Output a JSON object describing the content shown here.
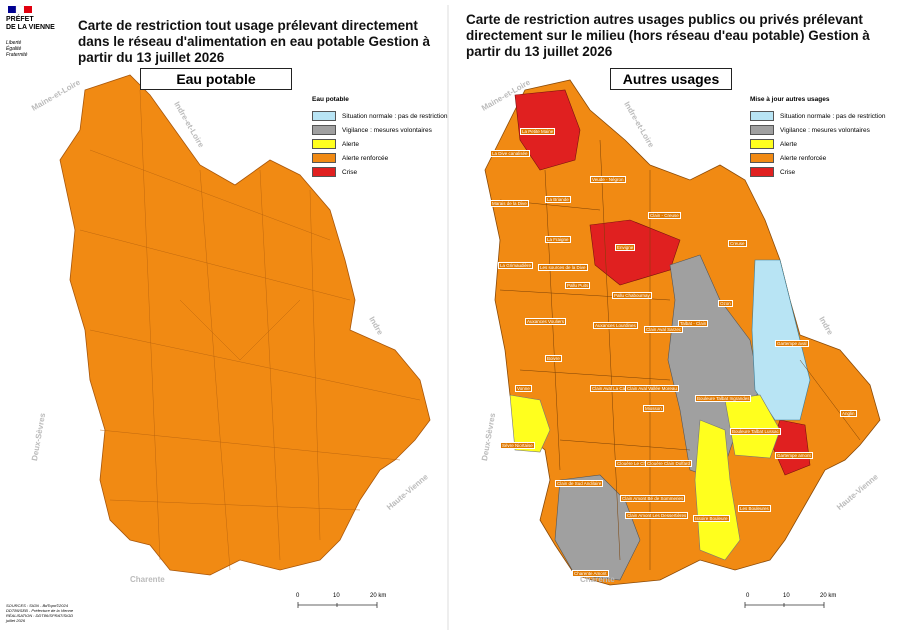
{
  "logo": {
    "name": "PRÉFET\nDE LA VIENNE",
    "motto": "Liberté\nÉgalité\nFraternité"
  },
  "left": {
    "title": "Carte de restriction tout usage prélevant directement dans le réseau d'alimentation en eau potable  Gestion à partir du 13 juillet 2026",
    "box_label": "Eau potable",
    "legend": {
      "title": "Eau potable",
      "items": [
        "Situation normale : pas de restriction",
        "Vigilance : mesures volontaires",
        "Alerte",
        "Alerte renforcée",
        "Crise"
      ]
    },
    "neighbors": [
      "Maine-et-Loire",
      "Indre-et-Loire",
      "Indre",
      "Deux-Sèvres",
      "Haute-Vienne",
      "Charente"
    ],
    "scale": [
      "0",
      "10",
      "20 km"
    ]
  },
  "right": {
    "title": "Carte de restriction autres usages publics ou privés prélevant directement sur le milieu (hors réseau d'eau potable) Gestion à partir du 13 juillet 2026",
    "box_label": "Autres usages",
    "legend": {
      "title": "Mise à jour autres usages",
      "items": [
        "Situation normale : pas de restriction",
        "Vigilance : mesures volontaires",
        "Alerte",
        "Alerte renforcée",
        "Crise"
      ]
    },
    "neighbors": [
      "Maine-et-Loire",
      "Indre-et-Loire",
      "Indre",
      "Deux-Sèvres",
      "Haute-Vienne",
      "Charente"
    ],
    "zones": [
      "La Petite Maine",
      "La Dive canalisée",
      "Veude - Négron",
      "La Briande",
      "Marais de la Dive",
      "Clain - Creuse",
      "La Fraigne",
      "Envigne",
      "Creuse",
      "La Grimaudière",
      "Les sources de la Dive",
      "Pallu Puits",
      "Pallu Chabournay",
      "Ozon",
      "Auxances Vouliers",
      "Auxances Lourdines",
      "Talbat - Clain",
      "Clain Aval Sarzec",
      "Gartempe aval",
      "Boivre",
      "Vonne",
      "Clain Aval La Cayenne",
      "Clain Aval Vallée Moreau",
      "Miosson",
      "Bouleure Talbat Ingrandes",
      "Anglin",
      "Sèvre Niortaise",
      "Clouère Le Chiron",
      "Clouère Clain Dolfard",
      "Bouleure Talbat Lussac",
      "Gartempe amont",
      "Clain de Sud Andilaire",
      "Clain Amont Bé de Sommeries",
      "Clain Amont Les Dessertières",
      "Issoire Bouleure",
      "Les Bouleures",
      "Charente Amont"
    ],
    "scale": [
      "0",
      "10",
      "20 km"
    ]
  },
  "sources": "SOURCES : SIGN - BdTopo©2024\nDDT86/SEB - Préfecture de la Vienne\nRÉALISATION : DDT86/SPRAT/SIGD\njuillet 2026"
}
